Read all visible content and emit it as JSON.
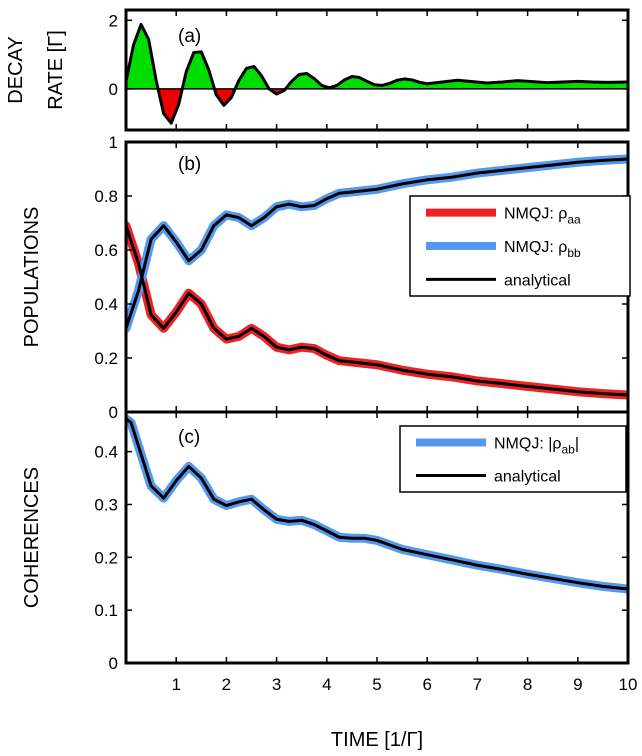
{
  "chart_data": {
    "type": "line",
    "xlabel": "TIME  [1/Γ]",
    "x_ticks": [
      "1",
      "2",
      "3",
      "4",
      "5",
      "6",
      "7",
      "8",
      "9",
      "10"
    ],
    "xlim": [
      0,
      10
    ],
    "panels": [
      {
        "id": "a",
        "label": "(a)",
        "ylabel_lines": [
          "DECAY",
          "RATE  [Γ]"
        ],
        "y_ticks": [
          "0",
          "2"
        ],
        "ylim": [
          -1.2,
          2.3
        ],
        "fill_positive_color": "#00dd00",
        "fill_negative_color": "#ee0000",
        "series": [
          {
            "color": "#000000",
            "x": [
              0,
              0.15,
              0.3,
              0.45,
              0.6,
              0.75,
              0.9,
              1.05,
              1.2,
              1.35,
              1.5,
              1.65,
              1.8,
              1.95,
              2.1,
              2.25,
              2.4,
              2.55,
              2.7,
              2.85,
              3.0,
              3.15,
              3.3,
              3.45,
              3.6,
              3.75,
              3.9,
              4.05,
              4.2,
              4.35,
              4.5,
              4.65,
              4.8,
              4.95,
              5.1,
              5.25,
              5.4,
              5.55,
              5.7,
              5.85,
              6.0,
              6.3,
              6.6,
              6.9,
              7.2,
              7.5,
              7.8,
              8.1,
              8.4,
              8.7,
              9.0,
              9.3,
              9.6,
              10.0
            ],
            "values": [
              0.22,
              1.28,
              1.88,
              1.45,
              0.25,
              -0.72,
              -1.0,
              -0.45,
              0.5,
              1.06,
              1.08,
              0.55,
              -0.18,
              -0.48,
              -0.25,
              0.25,
              0.6,
              0.65,
              0.38,
              0.0,
              -0.15,
              -0.05,
              0.22,
              0.42,
              0.45,
              0.3,
              0.1,
              0.03,
              0.1,
              0.26,
              0.36,
              0.33,
              0.22,
              0.12,
              0.1,
              0.16,
              0.25,
              0.29,
              0.26,
              0.19,
              0.15,
              0.2,
              0.25,
              0.21,
              0.17,
              0.2,
              0.24,
              0.21,
              0.18,
              0.2,
              0.22,
              0.2,
              0.19,
              0.2
            ]
          }
        ]
      },
      {
        "id": "b",
        "label": "(b)",
        "ylabel_lines": [
          "POPULATIONS"
        ],
        "y_ticks": [
          "0",
          "0.2",
          "0.4",
          "0.6",
          "0.8",
          "1"
        ],
        "ylim": [
          0,
          1
        ],
        "legend": [
          {
            "text": "NMQJ: ρ",
            "sub": "aa",
            "color": "#ee2222",
            "width": 8
          },
          {
            "text": "NMQJ: ρ",
            "sub": "bb",
            "color": "#5599ee",
            "width": 8
          },
          {
            "text": "analytical",
            "sub": "",
            "color": "#000000",
            "width": 3
          }
        ],
        "series": [
          {
            "name": "NMQJ: ρaa",
            "color": "#ee2222",
            "x": [
              0,
              0.25,
              0.5,
              0.75,
              1.0,
              1.25,
              1.5,
              1.75,
              2.0,
              2.25,
              2.5,
              2.75,
              3.0,
              3.25,
              3.5,
              3.75,
              4.0,
              4.25,
              4.5,
              4.75,
              5.0,
              5.5,
              6.0,
              6.5,
              7.0,
              7.5,
              8.0,
              8.5,
              9.0,
              9.5,
              10.0
            ],
            "values": [
              0.69,
              0.55,
              0.36,
              0.31,
              0.37,
              0.44,
              0.4,
              0.31,
              0.27,
              0.28,
              0.31,
              0.28,
              0.24,
              0.23,
              0.24,
              0.235,
              0.21,
              0.19,
              0.185,
              0.18,
              0.175,
              0.155,
              0.14,
              0.13,
              0.115,
              0.105,
              0.095,
              0.085,
              0.075,
              0.068,
              0.063
            ]
          },
          {
            "name": "NMQJ: ρbb",
            "color": "#5599ee",
            "x": [
              0,
              0.25,
              0.5,
              0.75,
              1.0,
              1.25,
              1.5,
              1.75,
              2.0,
              2.25,
              2.5,
              2.75,
              3.0,
              3.25,
              3.5,
              3.75,
              4.0,
              4.25,
              4.5,
              4.75,
              5.0,
              5.5,
              6.0,
              6.5,
              7.0,
              7.5,
              8.0,
              8.5,
              9.0,
              9.5,
              10.0
            ],
            "values": [
              0.31,
              0.45,
              0.64,
              0.69,
              0.63,
              0.56,
              0.6,
              0.69,
              0.73,
              0.72,
              0.69,
              0.72,
              0.76,
              0.77,
              0.76,
              0.765,
              0.79,
              0.81,
              0.815,
              0.82,
              0.825,
              0.845,
              0.86,
              0.87,
              0.885,
              0.895,
              0.905,
              0.915,
              0.925,
              0.932,
              0.937
            ]
          },
          {
            "name": "analytical",
            "color": "#000000",
            "x": [
              0,
              0.25,
              0.5,
              0.75,
              1.0,
              1.25,
              1.5,
              1.75,
              2.0,
              2.25,
              2.5,
              2.75,
              3.0,
              3.25,
              3.5,
              3.75,
              4.0,
              4.25,
              4.5,
              4.75,
              5.0,
              5.5,
              6.0,
              6.5,
              7.0,
              7.5,
              8.0,
              8.5,
              9.0,
              9.5,
              10.0
            ],
            "values": [
              0.69,
              0.55,
              0.36,
              0.31,
              0.37,
              0.44,
              0.4,
              0.31,
              0.27,
              0.28,
              0.31,
              0.28,
              0.24,
              0.23,
              0.24,
              0.235,
              0.21,
              0.19,
              0.185,
              0.18,
              0.175,
              0.155,
              0.14,
              0.13,
              0.115,
              0.105,
              0.095,
              0.085,
              0.075,
              0.068,
              0.063
            ]
          },
          {
            "name": "analytical",
            "color": "#000000",
            "x": [
              0,
              0.25,
              0.5,
              0.75,
              1.0,
              1.25,
              1.5,
              1.75,
              2.0,
              2.25,
              2.5,
              2.75,
              3.0,
              3.25,
              3.5,
              3.75,
              4.0,
              4.25,
              4.5,
              4.75,
              5.0,
              5.5,
              6.0,
              6.5,
              7.0,
              7.5,
              8.0,
              8.5,
              9.0,
              9.5,
              10.0
            ],
            "values": [
              0.31,
              0.45,
              0.64,
              0.69,
              0.63,
              0.56,
              0.6,
              0.69,
              0.73,
              0.72,
              0.69,
              0.72,
              0.76,
              0.77,
              0.76,
              0.765,
              0.79,
              0.81,
              0.815,
              0.82,
              0.825,
              0.845,
              0.86,
              0.87,
              0.885,
              0.895,
              0.905,
              0.915,
              0.925,
              0.932,
              0.937
            ]
          }
        ]
      },
      {
        "id": "c",
        "label": "(c)",
        "ylabel_lines": [
          "COHERENCES"
        ],
        "y_ticks": [
          "0",
          "0.1",
          "0.2",
          "0.3",
          "0.4"
        ],
        "ylim": [
          0,
          0.475
        ],
        "legend": [
          {
            "text": "NMQJ: |ρ",
            "sub": "ab",
            "tail": "|",
            "color": "#5599ee",
            "width": 8
          },
          {
            "text": "analytical",
            "sub": "",
            "tail": "",
            "color": "#000000",
            "width": 3
          }
        ],
        "series": [
          {
            "name": "NMQJ: |ρab|",
            "color": "#5599ee",
            "x": [
              0,
              0.1,
              0.25,
              0.5,
              0.75,
              1.0,
              1.25,
              1.5,
              1.75,
              2.0,
              2.25,
              2.5,
              2.75,
              3.0,
              3.25,
              3.5,
              3.75,
              4.0,
              4.25,
              4.5,
              4.75,
              5.0,
              5.5,
              6.0,
              6.5,
              7.0,
              7.5,
              8.0,
              8.5,
              9.0,
              9.5,
              10.0
            ],
            "values": [
              0.462,
              0.455,
              0.41,
              0.335,
              0.312,
              0.345,
              0.372,
              0.35,
              0.31,
              0.298,
              0.305,
              0.31,
              0.29,
              0.272,
              0.268,
              0.27,
              0.262,
              0.25,
              0.238,
              0.236,
              0.236,
              0.232,
              0.215,
              0.205,
              0.195,
              0.185,
              0.177,
              0.168,
              0.16,
              0.152,
              0.145,
              0.14
            ]
          },
          {
            "name": "analytical",
            "color": "#000000",
            "x": [
              0,
              0.1,
              0.25,
              0.5,
              0.75,
              1.0,
              1.25,
              1.5,
              1.75,
              2.0,
              2.25,
              2.5,
              2.75,
              3.0,
              3.25,
              3.5,
              3.75,
              4.0,
              4.25,
              4.5,
              4.75,
              5.0,
              5.5,
              6.0,
              6.5,
              7.0,
              7.5,
              8.0,
              8.5,
              9.0,
              9.5,
              10.0
            ],
            "values": [
              0.462,
              0.455,
              0.41,
              0.335,
              0.312,
              0.345,
              0.372,
              0.35,
              0.31,
              0.298,
              0.305,
              0.31,
              0.29,
              0.272,
              0.268,
              0.27,
              0.262,
              0.25,
              0.238,
              0.236,
              0.236,
              0.232,
              0.215,
              0.205,
              0.195,
              0.185,
              0.177,
              0.168,
              0.16,
              0.152,
              0.145,
              0.14
            ]
          }
        ]
      }
    ]
  }
}
